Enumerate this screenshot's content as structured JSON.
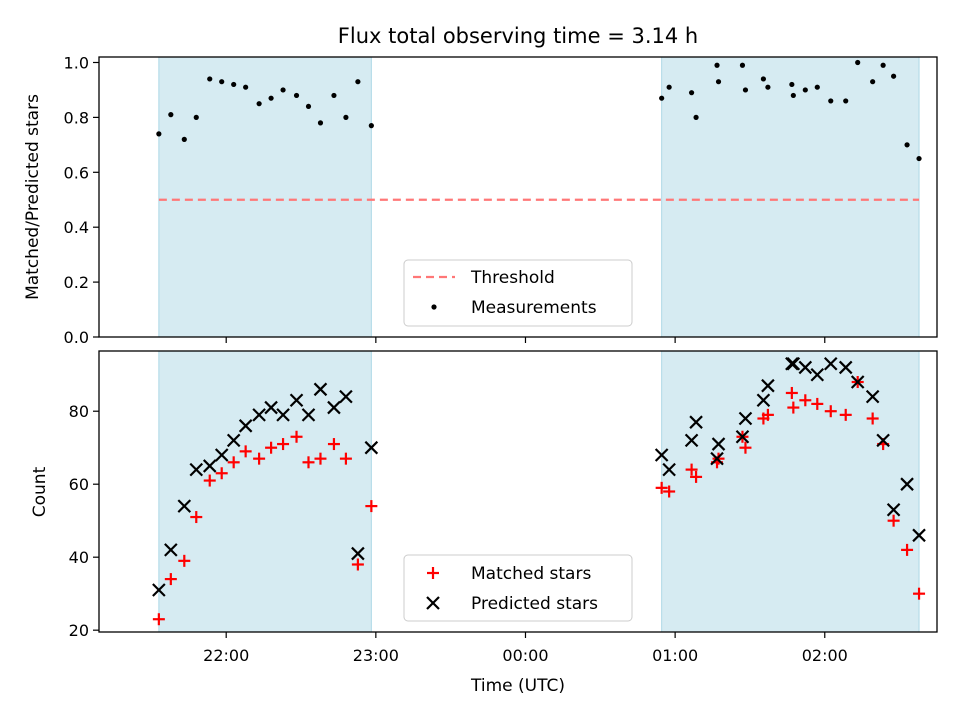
{
  "figure": {
    "title": "Flux total observing time = 3.14 h"
  },
  "chart_data": [
    {
      "type": "scatter",
      "ylabel": "Matched/Predicted stars",
      "ylim": [
        0.0,
        1.02
      ],
      "yticks": [
        0.0,
        0.2,
        0.4,
        0.6,
        0.8,
        1.0
      ],
      "ytick_labels": [
        "0.0",
        "0.2",
        "0.4",
        "0.6",
        "0.8",
        "1.0"
      ],
      "xlim": [
        -2.85,
        2.75
      ],
      "shaded_spans": [
        [
          -2.45,
          -1.03
        ],
        [
          0.91,
          2.63
        ]
      ],
      "threshold": {
        "name": "Threshold",
        "value": 0.5,
        "x_range": [
          -2.45,
          2.63
        ],
        "color": "#ff7777"
      },
      "series": [
        {
          "name": "Measurements",
          "x": [
            -2.45,
            -2.37,
            -2.28,
            -2.2,
            -2.11,
            -2.03,
            -1.95,
            -1.87,
            -1.78,
            -1.7,
            -1.62,
            -1.53,
            -1.45,
            -1.37,
            -1.28,
            -1.2,
            -1.12,
            -1.03,
            0.91,
            0.96,
            1.11,
            1.14,
            1.28,
            1.29,
            1.45,
            1.47,
            1.59,
            1.62,
            1.78,
            1.79,
            1.87,
            1.95,
            2.04,
            2.14,
            2.22,
            2.32,
            2.39,
            2.46,
            2.55,
            2.63
          ],
          "y": [
            0.74,
            0.81,
            0.72,
            0.8,
            0.94,
            0.93,
            0.92,
            0.91,
            0.85,
            0.87,
            0.9,
            0.88,
            0.84,
            0.78,
            0.88,
            0.8,
            0.93,
            0.77,
            0.87,
            0.91,
            0.89,
            0.8,
            0.99,
            0.93,
            0.99,
            0.9,
            0.94,
            0.91,
            0.92,
            0.88,
            0.9,
            0.91,
            0.86,
            0.86,
            1.0,
            0.93,
            0.99,
            0.95,
            0.7,
            0.65
          ],
          "color": "#000000"
        }
      ],
      "legend": {
        "position": "lower-center",
        "entries": [
          "Threshold",
          "Measurements"
        ]
      }
    },
    {
      "type": "scatter",
      "xlabel": "Time (UTC)",
      "ylabel": "Count",
      "ylim": [
        19.5,
        96.5
      ],
      "yticks": [
        20,
        40,
        60,
        80
      ],
      "ytick_labels": [
        "20",
        "40",
        "60",
        "80"
      ],
      "xlim": [
        -2.85,
        2.75
      ],
      "xticks": [
        -2,
        -1,
        0,
        1,
        2
      ],
      "xtick_labels": [
        "22:00",
        "23:00",
        "00:00",
        "01:00",
        "02:00"
      ],
      "shaded_spans": [
        [
          -2.45,
          -1.03
        ],
        [
          0.91,
          2.63
        ]
      ],
      "series": [
        {
          "name": "Matched stars",
          "marker": "plus",
          "color": "#ff0000",
          "x": [
            -2.45,
            -2.37,
            -2.28,
            -2.2,
            -2.11,
            -2.03,
            -1.95,
            -1.87,
            -1.78,
            -1.7,
            -1.62,
            -1.53,
            -1.45,
            -1.37,
            -1.28,
            -1.2,
            -1.12,
            -1.03,
            0.91,
            0.96,
            1.11,
            1.14,
            1.28,
            1.29,
            1.45,
            1.47,
            1.59,
            1.62,
            1.78,
            1.79,
            1.87,
            1.95,
            2.04,
            2.14,
            2.22,
            2.32,
            2.39,
            2.46,
            2.55,
            2.63
          ],
          "y": [
            23,
            34,
            39,
            51,
            61,
            63,
            66,
            69,
            67,
            70,
            71,
            73,
            66,
            67,
            71,
            67,
            38,
            54,
            59,
            58,
            64,
            62,
            66,
            67,
            73,
            70,
            78,
            79,
            85,
            81,
            83,
            82,
            80,
            79,
            88,
            78,
            71,
            50,
            42,
            30
          ]
        },
        {
          "name": "Predicted stars",
          "marker": "x",
          "color": "#000000",
          "x": [
            -2.45,
            -2.37,
            -2.28,
            -2.2,
            -2.11,
            -2.03,
            -1.95,
            -1.87,
            -1.78,
            -1.7,
            -1.62,
            -1.53,
            -1.45,
            -1.37,
            -1.28,
            -1.2,
            -1.12,
            -1.03,
            0.91,
            0.96,
            1.11,
            1.14,
            1.28,
            1.29,
            1.45,
            1.47,
            1.59,
            1.62,
            1.78,
            1.79,
            1.87,
            1.95,
            2.04,
            2.14,
            2.22,
            2.32,
            2.39,
            2.46,
            2.55,
            2.63
          ],
          "y": [
            31,
            42,
            54,
            64,
            65,
            68,
            72,
            76,
            79,
            81,
            79,
            83,
            79,
            86,
            81,
            84,
            41,
            70,
            68,
            64,
            72,
            77,
            67,
            71,
            73,
            78,
            83,
            87,
            93,
            93,
            92,
            90,
            93,
            92,
            88,
            84,
            72,
            53,
            60,
            46
          ]
        }
      ],
      "legend": {
        "position": "lower-center",
        "entries": [
          "Matched stars",
          "Predicted stars"
        ]
      }
    }
  ]
}
